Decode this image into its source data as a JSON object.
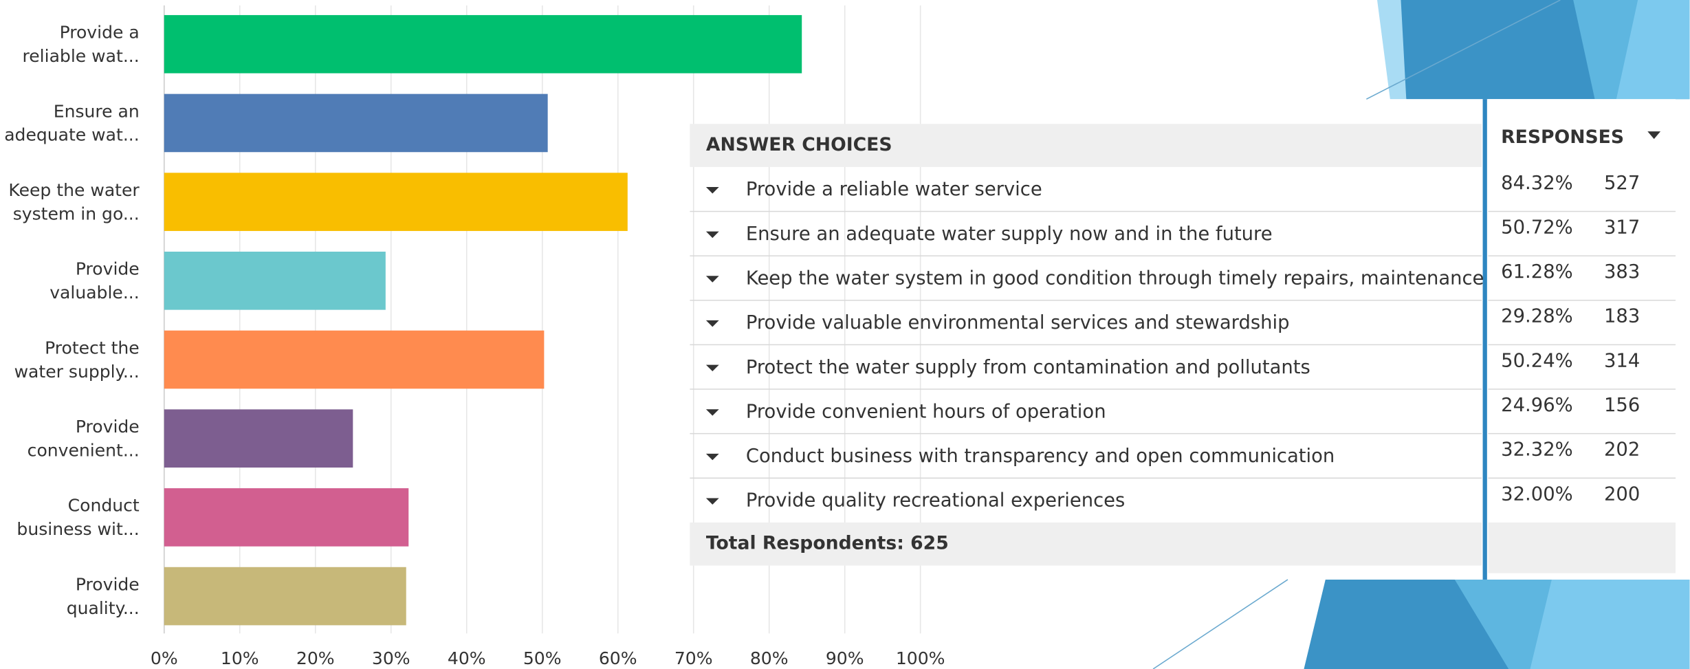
{
  "chart_data": {
    "type": "bar",
    "orientation": "horizontal",
    "categories": [
      [
        "Provide a",
        "reliable wat..."
      ],
      [
        "Ensure an",
        "adequate wat..."
      ],
      [
        "Keep the water",
        "system in go..."
      ],
      [
        "Provide",
        "valuable..."
      ],
      [
        "Protect the",
        "water supply..."
      ],
      [
        "Provide",
        "convenient..."
      ],
      [
        "Conduct",
        "business wit..."
      ],
      [
        "Provide",
        "quality..."
      ]
    ],
    "values": [
      84.32,
      50.72,
      61.28,
      29.28,
      50.24,
      24.96,
      32.32,
      32.0
    ],
    "colors": [
      "#00bf6f",
      "#507cb6",
      "#f9be00",
      "#6bc8cd",
      "#ff8b4f",
      "#7d5e90",
      "#d25f90",
      "#c7b879"
    ],
    "xlim": [
      0,
      100
    ],
    "xticks": [
      {
        "value": 0,
        "label": "0%"
      },
      {
        "value": 10,
        "label": "10%"
      },
      {
        "value": 20,
        "label": "20%"
      },
      {
        "value": 30,
        "label": "30%"
      },
      {
        "value": 40,
        "label": "40%"
      },
      {
        "value": 50,
        "label": "50%"
      },
      {
        "value": 60,
        "label": "60%"
      },
      {
        "value": 70,
        "label": "70%"
      },
      {
        "value": 80,
        "label": "80%"
      },
      {
        "value": 90,
        "label": "90%"
      },
      {
        "value": 100,
        "label": "100%"
      }
    ],
    "grid": true
  },
  "table": {
    "header": {
      "choices": "ANSWER CHOICES",
      "responses": "RESPONSES"
    },
    "rows": [
      [
        "Provide a reliable water service",
        "84.32%",
        527
      ],
      [
        "Ensure an adequate water supply now and in the future",
        "50.72%",
        317
      ],
      [
        "Keep the water system in good condition through timely repairs, maintenance",
        "61.28%",
        383
      ],
      [
        "Provide valuable environmental services and stewardship",
        "29.28%",
        183
      ],
      [
        "Protect the water supply from contamination and pollutants",
        "50.24%",
        314
      ],
      [
        "Provide convenient hours of operation",
        "24.96%",
        156
      ],
      [
        "Conduct business with transparency and open communication",
        "32.32%",
        202
      ],
      [
        "Provide quality recreational experiences",
        "32.00%",
        200
      ]
    ],
    "footer": "Total Respondents: 625"
  }
}
